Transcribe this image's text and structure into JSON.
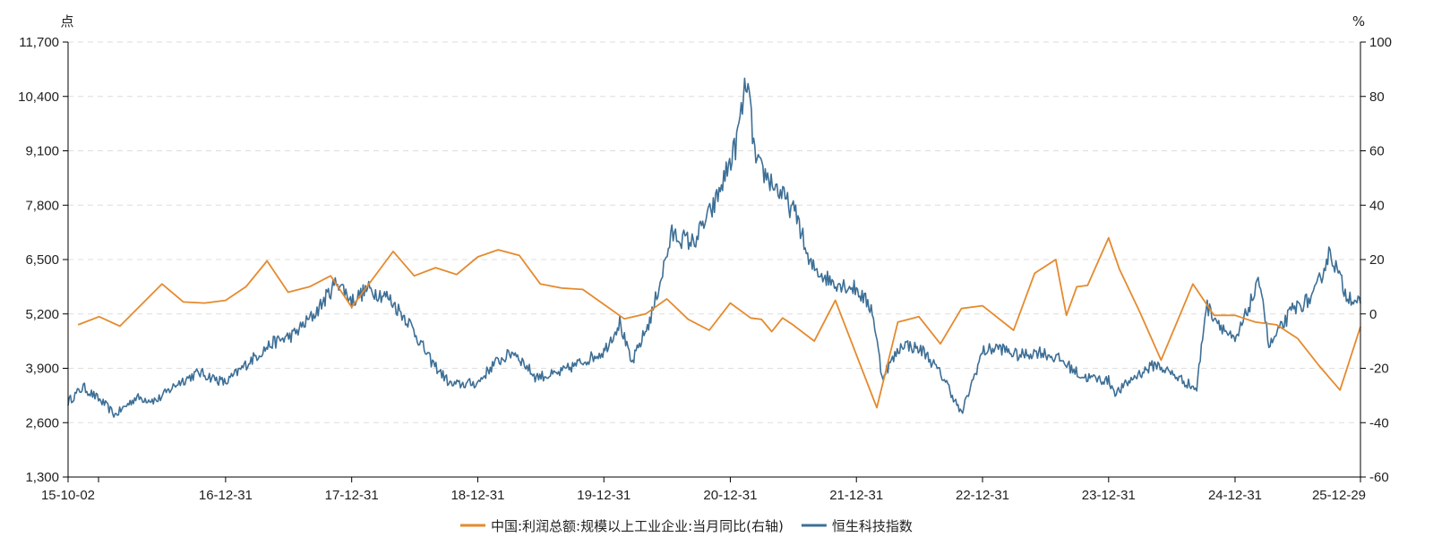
{
  "colors": {
    "profit": "#e58a2e",
    "index": "#3d6f96",
    "axis": "#000000",
    "grid": "#dddddd"
  },
  "chart_data": {
    "type": "line",
    "left_axis": {
      "unit": "点",
      "ticks": [
        1300,
        2600,
        3900,
        5200,
        6500,
        7800,
        9100,
        10400,
        11700
      ],
      "tick_labels": [
        "1,300",
        "2,600",
        "3,900",
        "5,200",
        "6,500",
        "7,800",
        "9,100",
        "10,400",
        "11,700"
      ],
      "range": [
        1300,
        11700
      ]
    },
    "right_axis": {
      "unit": "%",
      "ticks": [
        -60,
        -40,
        -20,
        0,
        20,
        40,
        60,
        80,
        100
      ],
      "tick_labels": [
        "-60",
        "-40",
        "-20",
        "0",
        "20",
        "40",
        "60",
        "80",
        "100"
      ],
      "range": [
        -60,
        100
      ]
    },
    "x_range": [
      "2015-10-02",
      "2025-12-29"
    ],
    "x_ticks": [
      {
        "date": "2015-10-02",
        "label": "15-10-02"
      },
      {
        "date": "2016-12-31",
        "label": "16-12-31"
      },
      {
        "date": "2017-12-31",
        "label": "17-12-31"
      },
      {
        "date": "2018-12-31",
        "label": "18-12-31"
      },
      {
        "date": "2019-12-31",
        "label": "19-12-31"
      },
      {
        "date": "2020-12-31",
        "label": "20-12-31"
      },
      {
        "date": "2021-12-31",
        "label": "21-12-31"
      },
      {
        "date": "2022-12-31",
        "label": "22-12-31"
      },
      {
        "date": "2023-12-31",
        "label": "23-12-31"
      },
      {
        "date": "2024-12-31",
        "label": "24-12-31"
      },
      {
        "date": "2025-12-29",
        "label": "25-12-29"
      }
    ],
    "grid": "horizontal-dashed",
    "legend_position": "bottom-center",
    "series": [
      {
        "name": "中国:利润总额:规模以上工业企业:当月同比(右轴)",
        "axis": "right",
        "color": "#e58a2e",
        "points": [
          [
            "2015-10-31",
            -4
          ],
          [
            "2015-12-31",
            -1
          ],
          [
            "2016-02-29",
            -4.5
          ],
          [
            "2016-06-30",
            11
          ],
          [
            "2016-08-31",
            4.4
          ],
          [
            "2016-10-31",
            4
          ],
          [
            "2016-12-31",
            5
          ],
          [
            "2017-02-28",
            10
          ],
          [
            "2017-04-30",
            19.5
          ],
          [
            "2017-06-30",
            8
          ],
          [
            "2017-08-31",
            10
          ],
          [
            "2017-10-31",
            14
          ],
          [
            "2017-12-31",
            2.5
          ],
          [
            "2018-04-30",
            23
          ],
          [
            "2018-06-30,",
            14
          ],
          [
            "2018-08-31",
            17
          ],
          [
            "2018-10-31",
            14.5
          ],
          [
            "2018-12-31",
            21
          ],
          [
            "2019-02-28",
            23.6
          ],
          [
            "2019-04-30",
            21.5
          ],
          [
            "2019-06-30",
            11
          ],
          [
            "2019-08-31",
            9.5
          ],
          [
            "2019-10-31",
            9
          ],
          [
            "2019-12-31",
            3.5
          ],
          [
            "2020-02-28",
            -1.8
          ],
          [
            "2020-04-30",
            0
          ],
          [
            "2020-06-30",
            5.5
          ],
          [
            "2020-08-31",
            -2
          ],
          [
            "2020-10-31",
            -6
          ],
          [
            "2020-12-31",
            4
          ],
          [
            "2021-02-28",
            -1.5
          ],
          [
            "2021-03-31",
            -2
          ],
          [
            "2021-04-30",
            -6.5
          ],
          [
            "2021-05-31",
            -1.5
          ],
          [
            "2021-06-30",
            -4
          ],
          [
            "2021-08-31",
            -10
          ],
          [
            "2021-10-31",
            5
          ],
          [
            "2022-02-28",
            -34.5
          ],
          [
            "2022-04-30",
            -3
          ],
          [
            "2022-06-30",
            -1
          ],
          [
            "2022-08-31",
            -11
          ],
          [
            "2022-10-31",
            2
          ],
          [
            "2022-12-31",
            3
          ],
          [
            "2023-03-31",
            -6
          ],
          [
            "2023-05-31",
            15
          ],
          [
            "2023-07-31",
            20
          ],
          [
            "2023-08-31",
            -0.5
          ],
          [
            "2023-09-30",
            10
          ],
          [
            "2023-10-31",
            10.5
          ],
          [
            "2023-12-31",
            28
          ],
          [
            "2024-01-31",
            16.5
          ],
          [
            "2024-03-31",
            0.5
          ],
          [
            "2024-05-31",
            -17
          ],
          [
            "2024-08-31",
            11
          ],
          [
            "2024-10-31",
            -0.5
          ],
          [
            "2024-12-31",
            -0.5
          ],
          [
            "2025-02-28",
            -3
          ],
          [
            "2025-04-30",
            -4
          ],
          [
            "2025-06-30",
            -9
          ],
          [
            "2025-08-31",
            -19
          ],
          [
            "2025-10-31",
            -28
          ],
          [
            "2025-12-29",
            -4.7
          ]
        ]
      },
      {
        "name": "恒生科技指数",
        "axis": "left",
        "color": "#3d6f96",
        "points": [
          [
            "2015-10-02",
            3100
          ],
          [
            "2015-11-15",
            3450
          ],
          [
            "2016-01-15",
            3050
          ],
          [
            "2016-02-15",
            2780
          ],
          [
            "2016-04-15",
            3200
          ],
          [
            "2016-06-15",
            3130
          ],
          [
            "2016-08-15",
            3550
          ],
          [
            "2016-10-15",
            3800
          ],
          [
            "2016-12-31",
            3550
          ],
          [
            "2017-03-15",
            4100
          ],
          [
            "2017-05-15",
            4500
          ],
          [
            "2017-07-15",
            4700
          ],
          [
            "2017-09-15",
            5200
          ],
          [
            "2017-11-20",
            6000
          ],
          [
            "2017-12-31",
            5500
          ],
          [
            "2018-02-15",
            5800
          ],
          [
            "2018-04-15",
            5600
          ],
          [
            "2018-06-15",
            5000
          ],
          [
            "2018-08-15",
            4100
          ],
          [
            "2018-10-15",
            3500
          ],
          [
            "2018-12-31",
            3550
          ],
          [
            "2019-02-15",
            4000
          ],
          [
            "2019-04-15",
            4300
          ],
          [
            "2019-06-15",
            3700
          ],
          [
            "2019-08-15",
            3750
          ],
          [
            "2019-10-15",
            4000
          ],
          [
            "2019-12-31",
            4300
          ],
          [
            "2020-02-15",
            5000
          ],
          [
            "2020-03-20",
            4000
          ],
          [
            "2020-05-15",
            5100
          ],
          [
            "2020-07-15",
            7100
          ],
          [
            "2020-09-15",
            6900
          ],
          [
            "2020-11-15",
            7800
          ],
          [
            "2021-01-15",
            9200
          ],
          [
            "2021-02-17",
            10800
          ],
          [
            "2021-03-15",
            8800
          ],
          [
            "2021-05-15",
            8200
          ],
          [
            "2021-07-15",
            7500
          ],
          [
            "2021-08-15",
            6400
          ],
          [
            "2021-10-15",
            6000
          ],
          [
            "2021-12-31",
            5800
          ],
          [
            "2022-02-15",
            5300
          ],
          [
            "2022-03-15",
            3700
          ],
          [
            "2022-05-15",
            4500
          ],
          [
            "2022-07-15",
            4300
          ],
          [
            "2022-09-15",
            3600
          ],
          [
            "2022-10-31",
            2800
          ],
          [
            "2022-12-31",
            4300
          ],
          [
            "2023-02-15",
            4400
          ],
          [
            "2023-04-15",
            4200
          ],
          [
            "2023-06-15",
            4300
          ],
          [
            "2023-08-15",
            4100
          ],
          [
            "2023-10-15",
            3700
          ],
          [
            "2023-12-31",
            3600
          ],
          [
            "2024-01-22",
            3300
          ],
          [
            "2024-03-15",
            3700
          ],
          [
            "2024-05-15",
            4000
          ],
          [
            "2024-07-15",
            3700
          ],
          [
            "2024-09-11",
            3400
          ],
          [
            "2024-10-08",
            5400
          ],
          [
            "2024-12-31",
            4500
          ],
          [
            "2025-02-15",
            5500
          ],
          [
            "2025-03-15",
            6000
          ],
          [
            "2025-04-08",
            4400
          ],
          [
            "2025-06-15",
            5300
          ],
          [
            "2025-08-15",
            5600
          ],
          [
            "2025-10-02",
            6700
          ],
          [
            "2025-11-15",
            5700
          ],
          [
            "2025-12-29",
            5450
          ]
        ]
      }
    ]
  }
}
